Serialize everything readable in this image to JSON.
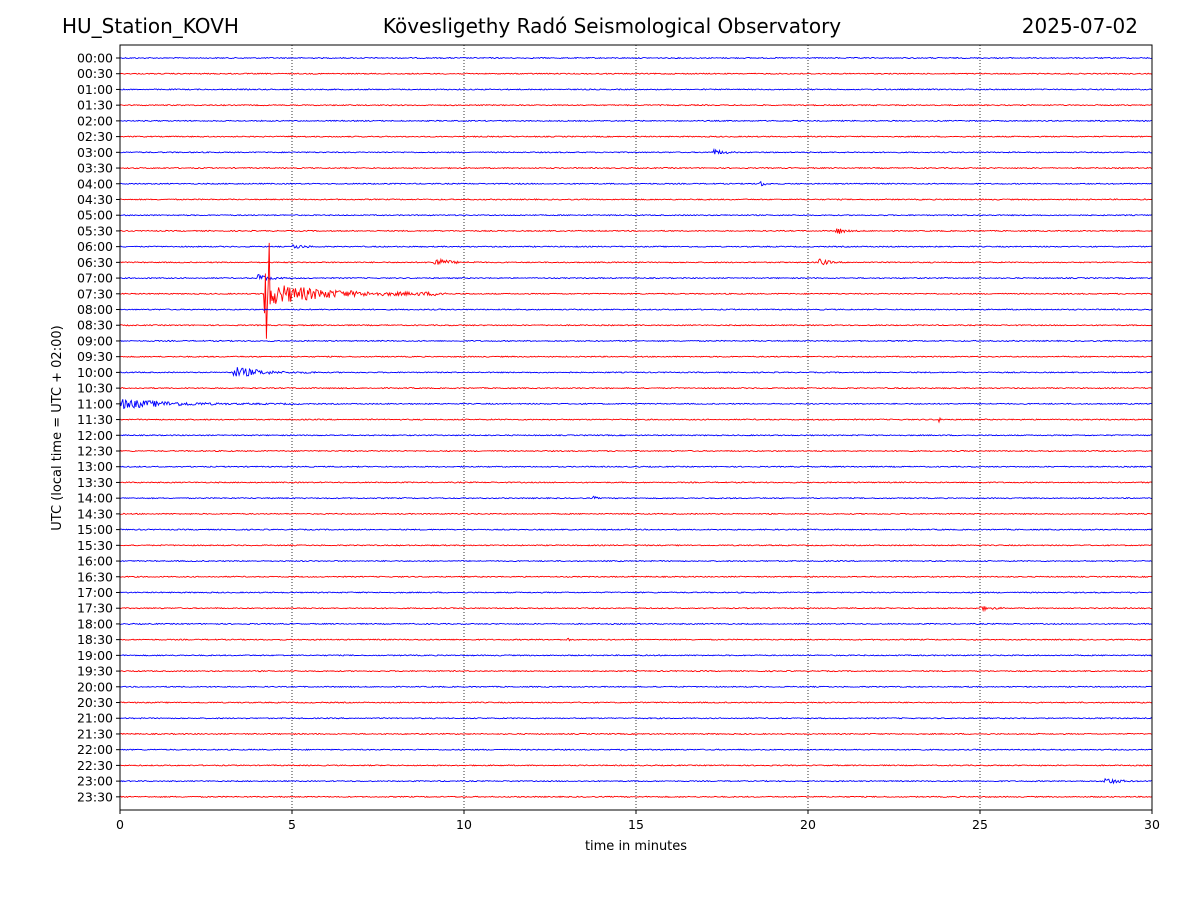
{
  "header": {
    "station": "HU_Station_KOVH",
    "observatory": "Kövesligethy Radó Seismological Observatory",
    "date": "2025-07-02"
  },
  "chart_data": {
    "type": "line",
    "title": "Kövesligethy Radó Seismological Observatory",
    "xlabel": "time in minutes",
    "ylabel": "UTC (local time = UTC + 02:00)",
    "xlim": [
      0,
      30
    ],
    "xticks": [
      "0",
      "5",
      "10",
      "15",
      "20",
      "25",
      "30"
    ],
    "grid": "vertical dotted lines at 5-minute intervals",
    "row_labels": [
      "00:00",
      "00:30",
      "01:00",
      "01:30",
      "02:00",
      "02:30",
      "03:00",
      "03:30",
      "04:00",
      "04:30",
      "05:00",
      "05:30",
      "06:00",
      "06:30",
      "07:00",
      "07:30",
      "08:00",
      "08:30",
      "09:00",
      "09:30",
      "10:00",
      "10:30",
      "11:00",
      "11:30",
      "12:00",
      "12:30",
      "13:00",
      "13:30",
      "14:00",
      "14:30",
      "15:00",
      "15:30",
      "16:00",
      "16:30",
      "17:00",
      "17:30",
      "18:00",
      "18:30",
      "19:00",
      "19:30",
      "20:00",
      "20:30",
      "21:00",
      "21:30",
      "22:00",
      "22:30",
      "23:00",
      "23:30"
    ],
    "trace_colors": [
      "#0000ff",
      "#ff0000"
    ],
    "events": [
      {
        "row": "03:00",
        "minute_start": 17.2,
        "minute_end": 18.5,
        "amplitude": 0.4
      },
      {
        "row": "04:00",
        "minute_start": 18.6,
        "minute_end": 19.0,
        "amplitude": 0.5
      },
      {
        "row": "05:30",
        "minute_start": 20.8,
        "minute_end": 21.6,
        "amplitude": 0.5
      },
      {
        "row": "06:00",
        "minute_start": 5.0,
        "minute_end": 6.5,
        "amplitude": 0.3
      },
      {
        "row": "06:30",
        "minute_start": 9.1,
        "minute_end": 10.5,
        "amplitude": 0.6
      },
      {
        "row": "06:30",
        "minute_start": 20.3,
        "minute_end": 21.2,
        "amplitude": 0.5
      },
      {
        "row": "07:00",
        "minute_start": 4.0,
        "minute_end": 5.2,
        "amplitude": 0.5
      },
      {
        "row": "07:30",
        "minute_start": 4.2,
        "minute_end": 9.5,
        "amplitude": 1.4
      },
      {
        "row": "07:30",
        "minute_start": 4.2,
        "minute_end": 4.35,
        "amplitude": 8.0
      },
      {
        "row": "10:00",
        "minute_start": 3.3,
        "minute_end": 5.8,
        "amplitude": 0.7
      },
      {
        "row": "11:00",
        "minute_start": 0.0,
        "minute_end": 5.2,
        "amplitude": 0.6
      },
      {
        "row": "11:30",
        "minute_start": 23.8,
        "minute_end": 24.2,
        "amplitude": 0.3
      },
      {
        "row": "14:00",
        "minute_start": 13.7,
        "minute_end": 14.1,
        "amplitude": 0.4
      },
      {
        "row": "17:30",
        "minute_start": 25.0,
        "minute_end": 26.5,
        "amplitude": 0.3
      },
      {
        "row": "18:30",
        "minute_start": 13.0,
        "minute_end": 13.3,
        "amplitude": 0.3
      },
      {
        "row": "23:00",
        "minute_start": 28.6,
        "minute_end": 30.0,
        "amplitude": 0.45
      }
    ]
  }
}
